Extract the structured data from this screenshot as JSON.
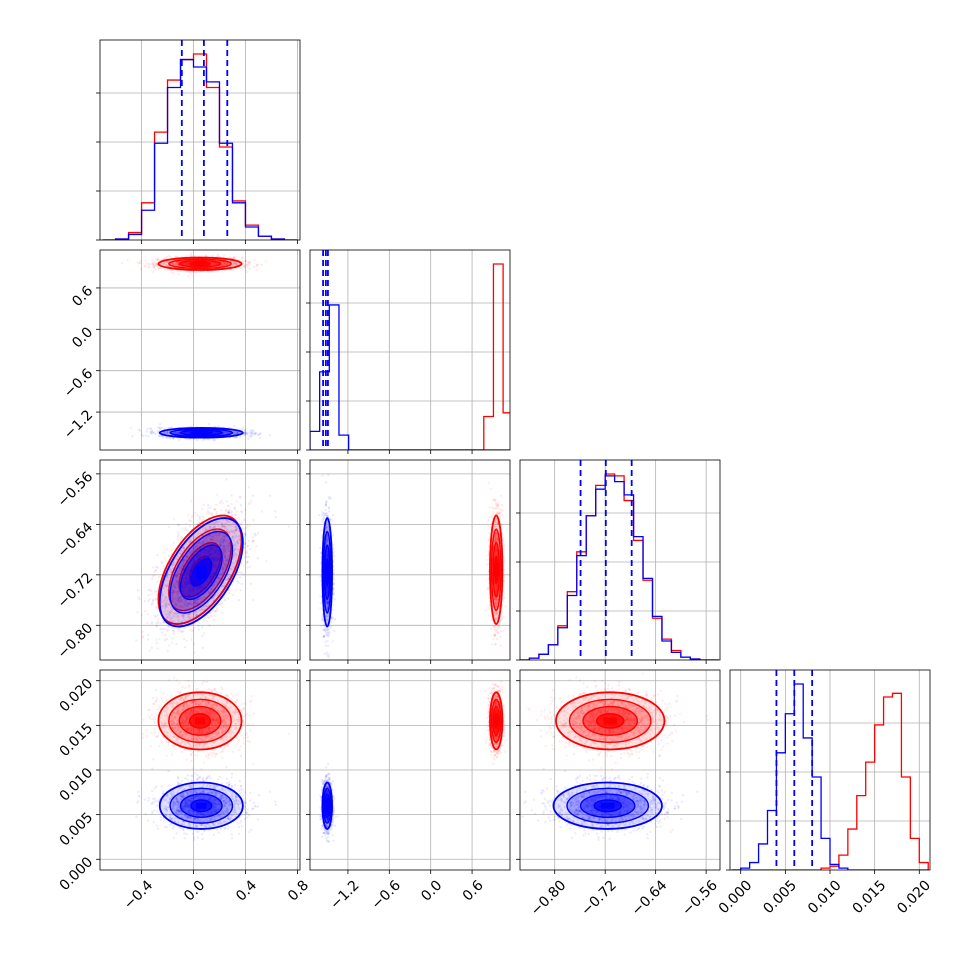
{
  "chart_data": {
    "type": "corner",
    "colors": {
      "series_a": "#ff0000",
      "series_b": "#0000ff",
      "quantile_lines": "#0000ff",
      "grid": "#b0b0b0"
    },
    "grid": true,
    "parameters": [
      {
        "id": "p1",
        "range": [
          -0.72,
          0.82
        ],
        "ticks": [
          -0.4,
          0.0,
          0.4,
          0.8
        ],
        "tick_labels": [
          "−0.4",
          "0.0",
          "0.4",
          "0.8"
        ],
        "quantiles": [
          -0.09,
          0.08,
          0.26
        ]
      },
      {
        "id": "p2",
        "range": [
          -1.75,
          1.15
        ],
        "ticks": [
          -1.2,
          -0.6,
          0.0,
          0.6
        ],
        "tick_labels": [
          "−1.2",
          "−0.6",
          "0.0",
          "0.6"
        ],
        "quantiles": [
          -1.56,
          -1.52,
          -1.49
        ]
      },
      {
        "id": "p3",
        "range": [
          -0.855,
          -0.538
        ],
        "ticks": [
          -0.8,
          -0.72,
          -0.64,
          -0.56
        ],
        "tick_labels": [
          "−0.80",
          "−0.72",
          "−0.64",
          "−0.56"
        ],
        "quantiles": [
          -0.759,
          -0.719,
          -0.678
        ]
      },
      {
        "id": "p4",
        "range": [
          -0.0012,
          0.0212
        ],
        "ticks": [
          0.0,
          0.005,
          0.01,
          0.015,
          0.02
        ],
        "tick_labels": [
          "0.000",
          "0.005",
          "0.010",
          "0.015",
          "0.020"
        ],
        "quantiles": [
          0.004,
          0.006,
          0.008
        ]
      }
    ],
    "series": [
      {
        "color": "#ff0000",
        "mean": [
          0.05,
          0.95,
          -0.712,
          0.0155
        ],
        "sd": [
          0.16,
          0.045,
          0.043,
          0.0016
        ],
        "corr_13": 0.55
      },
      {
        "color": "#0000ff",
        "mean": [
          0.06,
          -1.5,
          -0.716,
          0.006
        ],
        "sd": [
          0.16,
          0.035,
          0.043,
          0.0013
        ],
        "corr_13": 0.55
      }
    ],
    "histograms": {
      "p1": {
        "bin_edges": [
          -0.7,
          -0.6,
          -0.5,
          -0.4,
          -0.3,
          -0.2,
          -0.1,
          0.0,
          0.1,
          0.2,
          0.3,
          0.4,
          0.5,
          0.6,
          0.7,
          0.8
        ],
        "series_a": [
          0,
          0.005,
          0.04,
          0.2,
          0.58,
          0.86,
          0.97,
          1.0,
          0.82,
          0.5,
          0.21,
          0.08,
          0.02,
          0.005,
          0
        ],
        "series_b": [
          0,
          0.005,
          0.03,
          0.16,
          0.52,
          0.82,
          0.97,
          0.93,
          0.85,
          0.52,
          0.2,
          0.07,
          0.02,
          0.005,
          0
        ]
      },
      "p2": {
        "bin_edges": [
          -1.75,
          -1.61,
          -1.47,
          -1.33,
          -1.19,
          -1.05,
          -0.91,
          -0.77,
          -0.63,
          -0.49,
          -0.35,
          -0.21,
          -0.07,
          0.07,
          0.21,
          0.35,
          0.49,
          0.63,
          0.77,
          0.91,
          1.05,
          1.19
        ],
        "series_a": [
          0,
          0,
          0,
          0,
          0,
          0,
          0,
          0,
          0,
          0,
          0,
          0,
          0,
          0,
          0,
          0,
          0,
          0,
          0.18,
          1.0,
          0.2
        ],
        "series_b": [
          0.1,
          0.42,
          0.78,
          0.08,
          0,
          0,
          0,
          0,
          0,
          0,
          0,
          0,
          0,
          0,
          0,
          0,
          0,
          0,
          0,
          0,
          0
        ]
      },
      "p3": {
        "bin_edges": [
          -0.855,
          -0.84,
          -0.825,
          -0.81,
          -0.795,
          -0.78,
          -0.765,
          -0.75,
          -0.735,
          -0.72,
          -0.705,
          -0.69,
          -0.675,
          -0.66,
          -0.645,
          -0.63,
          -0.615,
          -0.6,
          -0.585,
          -0.57,
          -0.555,
          -0.54
        ],
        "series_a": [
          0,
          0.01,
          0.03,
          0.08,
          0.18,
          0.36,
          0.57,
          0.76,
          0.92,
          0.98,
          0.97,
          0.84,
          0.63,
          0.42,
          0.22,
          0.11,
          0.05,
          0.015,
          0.005,
          0,
          0
        ],
        "series_b": [
          0,
          0.01,
          0.03,
          0.08,
          0.17,
          0.34,
          0.55,
          0.76,
          0.9,
          0.97,
          0.94,
          0.87,
          0.65,
          0.43,
          0.23,
          0.1,
          0.04,
          0.015,
          0.005,
          0,
          0
        ]
      },
      "p4": {
        "bin_edges": [
          -0.001,
          0.0,
          0.001,
          0.002,
          0.003,
          0.004,
          0.005,
          0.006,
          0.007,
          0.008,
          0.009,
          0.01,
          0.011,
          0.012,
          0.013,
          0.014,
          0.015,
          0.016,
          0.017,
          0.018,
          0.019,
          0.02,
          0.021
        ],
        "series_a": [
          0,
          0,
          0,
          0,
          0,
          0,
          0,
          0,
          0,
          0,
          0.01,
          0.02,
          0.08,
          0.22,
          0.4,
          0.58,
          0.78,
          0.93,
          0.95,
          0.5,
          0.17,
          0.04
        ],
        "series_b": [
          0,
          0.01,
          0.04,
          0.14,
          0.32,
          0.63,
          0.84,
          1.0,
          0.71,
          0.5,
          0.17,
          0.03,
          0.01,
          0,
          0,
          0,
          0,
          0,
          0,
          0,
          0,
          0
        ]
      }
    }
  }
}
